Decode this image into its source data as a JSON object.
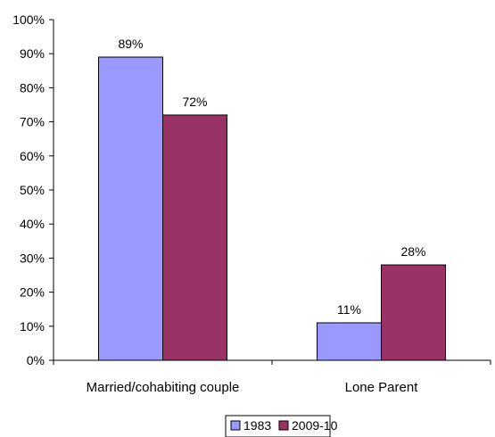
{
  "chart_data": {
    "type": "bar",
    "title": "",
    "xlabel": "",
    "ylabel": "",
    "categories": [
      "Married/cohabiting couple",
      "Lone Parent"
    ],
    "series": [
      {
        "name": "1983",
        "values": [
          89,
          11
        ],
        "labels": [
          "89%",
          "11%"
        ],
        "color": "#9999ff"
      },
      {
        "name": "2009-10",
        "values": [
          72,
          28
        ],
        "labels": [
          "72%",
          "28%"
        ],
        "color": "#993366"
      }
    ],
    "ylim": [
      0,
      100
    ],
    "yticks": [
      0,
      10,
      20,
      30,
      40,
      50,
      60,
      70,
      80,
      90,
      100
    ],
    "ytick_labels": [
      "0%",
      "10%",
      "20%",
      "30%",
      "40%",
      "50%",
      "60%",
      "70%",
      "80%",
      "90%",
      "100%"
    ],
    "grid": false,
    "legend_position": "bottom"
  }
}
